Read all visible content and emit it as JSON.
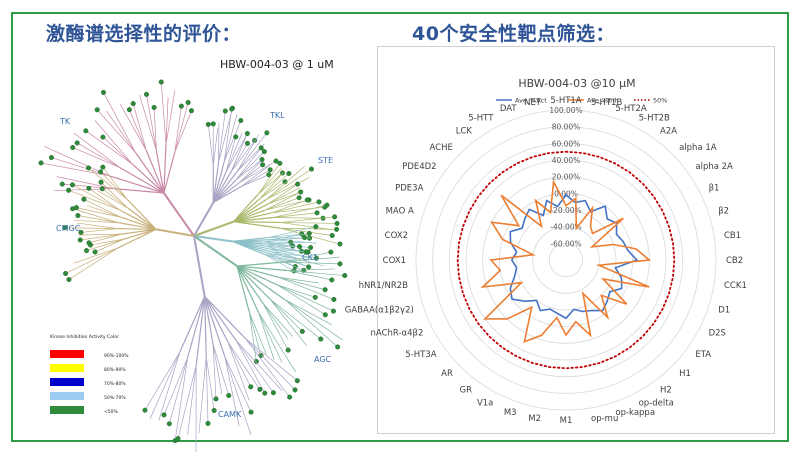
{
  "left_heading": "激酶谱选择性的评价：",
  "right_heading": "40个安全性靶点筛选：",
  "kinome": {
    "title": "HBW-004-03 @ 1 uM",
    "families": [
      "TK",
      "TKL",
      "STE",
      "CK1",
      "CMGC",
      "AGC",
      "CAMK"
    ],
    "legend_title": "Kinase Inhibition Activity Color",
    "legend": [
      {
        "label": "90%-100%",
        "color": "#ff0000"
      },
      {
        "label": "80%-90%",
        "color": "#ffff00"
      },
      {
        "label": "70%-80%",
        "color": "#0000cc"
      },
      {
        "label": "50%-70%",
        "color": "#99ccee"
      },
      {
        "label": "<50%",
        "color": "#2e8b3a"
      }
    ],
    "colors": {
      "TK": "#c98aa8",
      "TKL": "#a9a3c4",
      "STE": "#a8b86a",
      "CK1": "#8ec1c9",
      "CMGC": "#c8b07a",
      "AGC": "#7fb79d",
      "CAMK": "#a9a3c4",
      "hit": "#2e8b3a"
    }
  },
  "chart_data": {
    "type": "radar",
    "title": "HBW-004-03  @10 μM",
    "legend": [
      "Ave_%Act",
      "Ave_%Inh",
      "50%"
    ],
    "series_colors": {
      "Ave_%Act": "#4472c4",
      "Ave_%Inh": "#ed7d31",
      "50%": "#c00000"
    },
    "rlim": [
      -80,
      100
    ],
    "ticks": [
      -60,
      -40,
      -20,
      0,
      20,
      40,
      60,
      80,
      100
    ],
    "tick_labels": [
      "-60.00%",
      "-40.00%",
      "-20.00%",
      "0.00%",
      "20.00%",
      "40.00%",
      "60.00%",
      "80.00%",
      "100.00%"
    ],
    "categories": [
      "5-HT1A",
      "5-HT1B",
      "5-HT2A",
      "5-HT2B",
      "A2A",
      "alpha 1A",
      "alpha 2A",
      "β1",
      "β2",
      "CB1",
      "CB2",
      "CCK1",
      "D1",
      "D2S",
      "ETA",
      "H1",
      "H2",
      "op-delta",
      "op-kappa",
      "op-mu",
      "M1",
      "M2",
      "M3",
      "V1a",
      "GR",
      "AR",
      "5-HT3A",
      "nAChR-α4β2",
      "GABAA(α1β2γ2)",
      "hNR1/NR2B",
      "COX1",
      "COX2",
      "MAO A",
      "PDE3A",
      "PDE4D2",
      "ACHE",
      "LCK",
      "5-HTT",
      "DAT",
      "NET"
    ],
    "series": [
      {
        "name": "Ave_%Act",
        "values": [
          -2,
          -10,
          -5,
          -15,
          0,
          -10,
          -5,
          -12,
          -8,
          -5,
          5,
          -20,
          -10,
          -5,
          -15,
          -10,
          -5,
          -12,
          -15,
          -20,
          -10,
          -15,
          -18,
          -12,
          -20,
          -10,
          0,
          -5,
          -15,
          -20,
          -15,
          -20,
          -10,
          -5,
          -15,
          -10,
          -5,
          -20,
          -5,
          -15
        ]
      },
      {
        "name": "Ave_%Inh",
        "values": [
          -15,
          -5,
          -40,
          -10,
          -30,
          -35,
          5,
          -45,
          -20,
          5,
          20,
          -40,
          25,
          -30,
          10,
          -20,
          5,
          -35,
          15,
          -5,
          10,
          -10,
          15,
          30,
          -10,
          20,
          40,
          -20,
          25,
          0,
          10,
          -40,
          0,
          20,
          -10,
          30,
          -30,
          0,
          -20,
          15
        ]
      },
      {
        "name": "50%",
        "values": [
          50,
          50,
          50,
          50,
          50,
          50,
          50,
          50,
          50,
          50,
          50,
          50,
          50,
          50,
          50,
          50,
          50,
          50,
          50,
          50,
          50,
          50,
          50,
          50,
          50,
          50,
          50,
          50,
          50,
          50,
          50,
          50,
          50,
          50,
          50,
          50,
          50,
          50,
          50,
          50
        ]
      }
    ]
  }
}
